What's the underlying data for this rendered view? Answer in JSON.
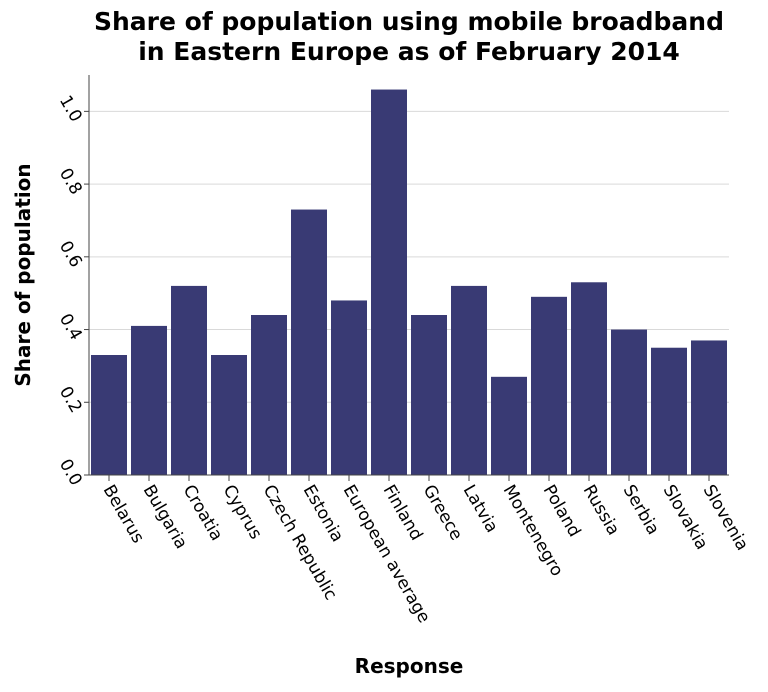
{
  "chart_data": {
    "type": "bar",
    "title_lines": [
      "Share of population using mobile broadband",
      "in Eastern Europe as of February 2014"
    ],
    "xlabel": "Response",
    "ylabel": "Share of population",
    "categories": [
      "Belarus",
      "Bulgaria",
      "Croatia",
      "Cyprus",
      "Czech Republic",
      "Estonia",
      "European average",
      "Finland",
      "Greece",
      "Latvia",
      "Montenegro",
      "Poland",
      "Russia",
      "Serbia",
      "Slovakia",
      "Slovenia"
    ],
    "values": [
      0.33,
      0.41,
      0.52,
      0.33,
      0.44,
      0.73,
      0.48,
      1.06,
      0.44,
      0.52,
      0.27,
      0.49,
      0.53,
      0.4,
      0.35,
      0.37
    ],
    "ylim": [
      0,
      1.1
    ],
    "yticks": [
      "0.0",
      "0.2",
      "0.4",
      "0.6",
      "0.8",
      "1.0"
    ],
    "ytick_values": [
      0,
      0.2,
      0.4,
      0.6,
      0.8,
      1.0
    ],
    "grid": true,
    "bar_color": "#393a74"
  }
}
